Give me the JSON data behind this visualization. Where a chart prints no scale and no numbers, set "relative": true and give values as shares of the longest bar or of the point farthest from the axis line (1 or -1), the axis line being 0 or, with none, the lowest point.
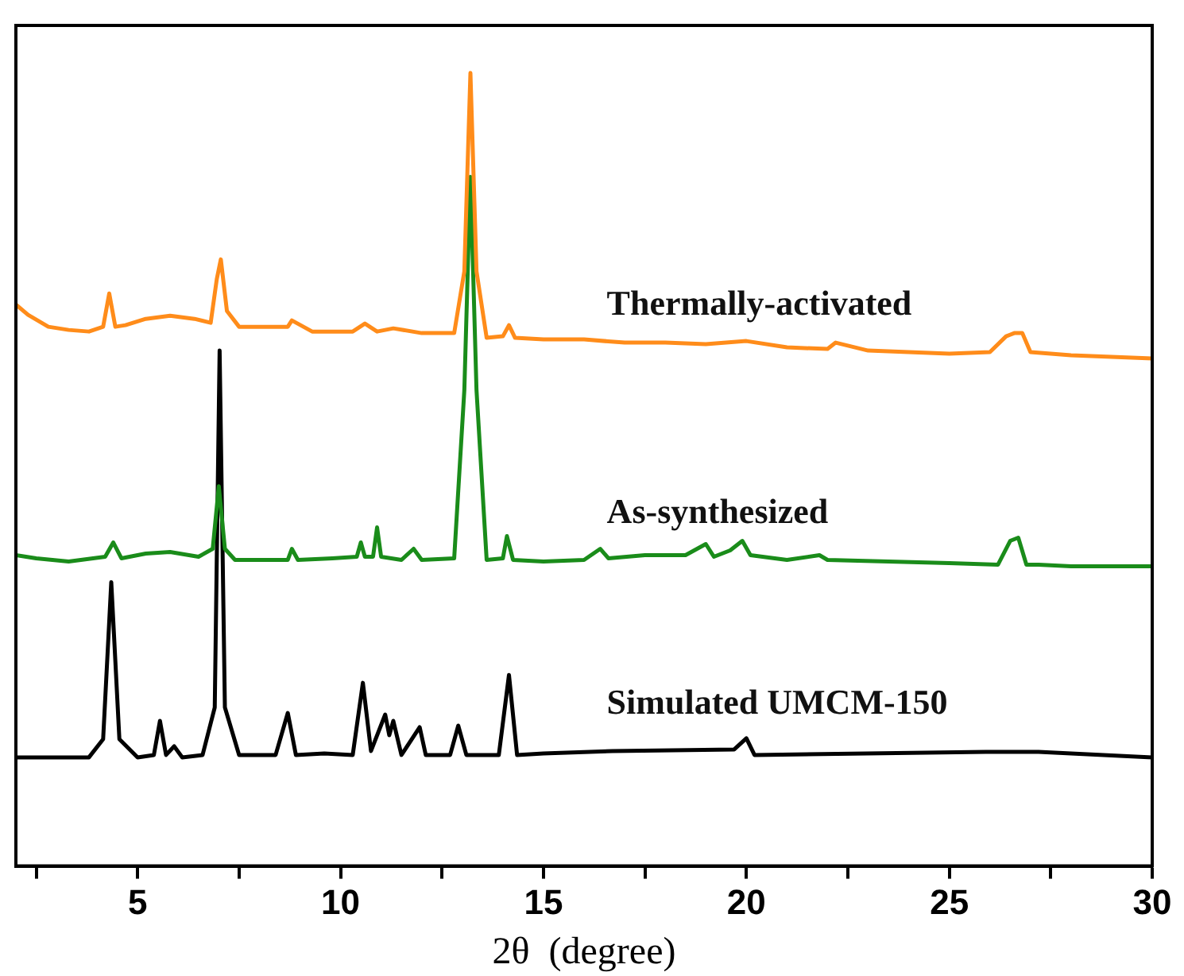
{
  "chart_data": {
    "type": "line",
    "xlabel": "2θ  (degree)",
    "relative": true,
    "xlim": [
      2,
      30
    ],
    "xticks": [
      {
        "value": 2.5,
        "label": null
      },
      5,
      {
        "value": 7.5,
        "label": null
      },
      10,
      {
        "value": 12.5,
        "label": null
      },
      15,
      {
        "value": 17.5,
        "label": null
      },
      20,
      {
        "value": 22.5,
        "label": null
      },
      25,
      {
        "value": 27.5,
        "label": null
      },
      30
    ],
    "grid": false,
    "legend": false,
    "marker": "none",
    "line_style": "solid",
    "series": [
      {
        "name": "Thermally-activated",
        "color": "#ff8c1a",
        "x": [
          2,
          2.3,
          2.8,
          3.3,
          3.8,
          4.15,
          4.3,
          4.45,
          4.7,
          5.2,
          5.8,
          6.4,
          6.8,
          6.95,
          7.05,
          7.2,
          7.5,
          8.2,
          8.7,
          8.8,
          9.3,
          10.3,
          10.6,
          10.9,
          11.3,
          12,
          12.8,
          13.05,
          13.2,
          13.35,
          13.6,
          14.0,
          14.15,
          14.3,
          15,
          16,
          17,
          18,
          19,
          20,
          21,
          22,
          22.2,
          23,
          24,
          25,
          26,
          26.4,
          26.6,
          26.8,
          27,
          28,
          29,
          30
        ],
        "values": [
          0.708,
          0.695,
          0.68,
          0.676,
          0.674,
          0.68,
          0.722,
          0.68,
          0.682,
          0.69,
          0.694,
          0.69,
          0.685,
          0.74,
          0.765,
          0.7,
          0.68,
          0.68,
          0.68,
          0.688,
          0.674,
          0.674,
          0.684,
          0.674,
          0.678,
          0.672,
          0.672,
          0.75,
          1,
          0.75,
          0.666,
          0.668,
          0.682,
          0.666,
          0.664,
          0.664,
          0.66,
          0.66,
          0.658,
          0.662,
          0.654,
          0.652,
          0.66,
          0.65,
          0.648,
          0.646,
          0.648,
          0.668,
          0.672,
          0.672,
          0.648,
          0.644,
          0.642,
          0.64
        ]
      },
      {
        "name": "As-synthesized",
        "color": "#1a8c1a",
        "x": [
          2,
          2.5,
          3.3,
          4.2,
          4.4,
          4.6,
          5.2,
          5.8,
          6.5,
          6.85,
          7.0,
          7.15,
          7.4,
          8.0,
          8.7,
          8.8,
          8.95,
          9.8,
          10.4,
          10.5,
          10.6,
          10.8,
          10.9,
          11.0,
          11.5,
          11.8,
          12.0,
          12.8,
          13.05,
          13.2,
          13.35,
          13.6,
          14.0,
          14.1,
          14.25,
          15,
          16,
          16.4,
          16.6,
          17.5,
          18.5,
          19.0,
          19.2,
          19.6,
          19.9,
          20.1,
          21,
          21.8,
          22,
          23.5,
          25,
          26.2,
          26.5,
          26.6,
          26.7,
          26.9,
          27.2,
          28,
          29,
          30
        ],
        "values": [
          0.392,
          0.388,
          0.384,
          0.39,
          0.408,
          0.388,
          0.394,
          0.396,
          0.39,
          0.4,
          0.479,
          0.4,
          0.386,
          0.386,
          0.386,
          0.4,
          0.386,
          0.388,
          0.39,
          0.408,
          0.39,
          0.39,
          0.427,
          0.39,
          0.386,
          0.4,
          0.386,
          0.388,
          0.6,
          0.869,
          0.6,
          0.386,
          0.388,
          0.416,
          0.386,
          0.384,
          0.386,
          0.4,
          0.388,
          0.392,
          0.392,
          0.406,
          0.39,
          0.398,
          0.41,
          0.392,
          0.386,
          0.392,
          0.386,
          0.384,
          0.382,
          0.38,
          0.41,
          0.412,
          0.414,
          0.38,
          0.38,
          0.378,
          0.378,
          0.378
        ]
      },
      {
        "name": "Simulated UMCM-150",
        "color": "#000000",
        "x": [
          2,
          3.8,
          4.15,
          4.35,
          4.55,
          5.0,
          5.4,
          5.55,
          5.7,
          5.9,
          6.1,
          6.6,
          6.9,
          7.02,
          7.15,
          7.5,
          8.4,
          8.7,
          8.9,
          9.6,
          10.3,
          10.55,
          10.75,
          11.1,
          11.2,
          11.3,
          11.5,
          11.95,
          12.1,
          12.7,
          12.9,
          13.1,
          13.9,
          14.15,
          14.35,
          15,
          16.7,
          19.7,
          20.0,
          20.2,
          25.9,
          27.2,
          30
        ],
        "values": [
          0.137,
          0.137,
          0.16,
          0.358,
          0.16,
          0.137,
          0.14,
          0.183,
          0.14,
          0.151,
          0.137,
          0.14,
          0.2,
          0.65,
          0.2,
          0.14,
          0.14,
          0.193,
          0.14,
          0.142,
          0.14,
          0.231,
          0.145,
          0.191,
          0.165,
          0.183,
          0.14,
          0.175,
          0.14,
          0.14,
          0.177,
          0.14,
          0.14,
          0.241,
          0.14,
          0.142,
          0.145,
          0.147,
          0.161,
          0.14,
          0.144,
          0.144,
          0.137
        ]
      }
    ]
  }
}
